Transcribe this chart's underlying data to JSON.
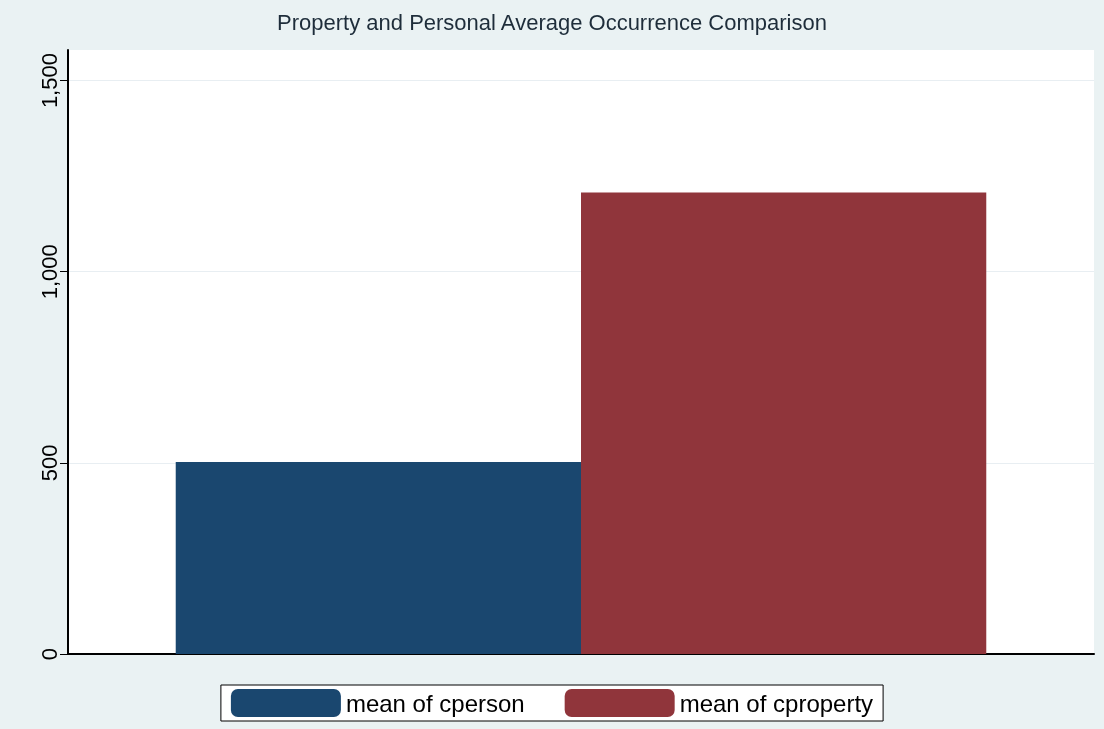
{
  "chart_data": {
    "type": "bar",
    "title": "Property and Personal Average Occurrence Comparison",
    "categories": [
      null
    ],
    "series": [
      {
        "name": "mean of cperson",
        "color": "#1a476f",
        "values": [
          502
        ]
      },
      {
        "name": "mean of cproperty",
        "color": "#90353b",
        "values": [
          1207
        ]
      }
    ],
    "ylim": [
      0,
      1580
    ],
    "yticks": [
      0,
      500,
      {
        "value": 1000,
        "label": "1,000"
      },
      {
        "value": 1500,
        "label": "1,500"
      }
    ],
    "grid": "y",
    "legend": "bottom"
  }
}
